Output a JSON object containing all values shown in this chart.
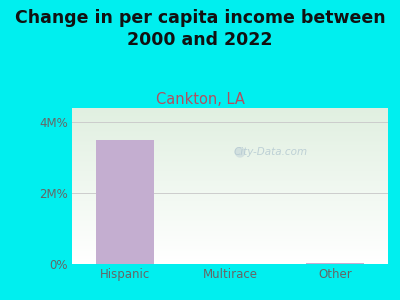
{
  "title": "Change in per capita income between\n2000 and 2022",
  "subtitle": "Cankton, LA",
  "categories": [
    "Hispanic",
    "Multirace",
    "Other"
  ],
  "values": [
    3500000,
    0,
    35000
  ],
  "bar_color": "#c4aed0",
  "background_outer": "#00efef",
  "background_inner_top": "#ddeedd",
  "background_inner_bottom": "#f8fff8",
  "title_fontsize": 12.5,
  "subtitle_fontsize": 10.5,
  "subtitle_color": "#b05060",
  "tick_color": "#666666",
  "ylim_max": 4400000,
  "yticks": [
    0,
    2000000,
    4000000
  ],
  "ytick_labels": [
    "0%",
    "2M%",
    "4M%"
  ],
  "watermark": "City-Data.com"
}
